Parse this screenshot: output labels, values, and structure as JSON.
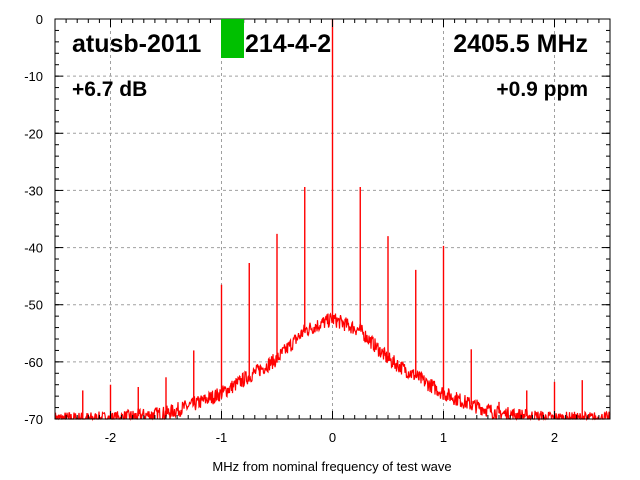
{
  "chart_data": {
    "type": "line",
    "title_left": "atusb-2011",
    "title_right_part": "214-4-2",
    "frequency_label": "2405.5 MHz",
    "level_label": "+6.7 dB",
    "ppm_label": "+0.9 ppm",
    "xlabel": "MHz from nominal frequency of test wave",
    "ylabel": "",
    "xlim": [
      -2.5,
      2.5
    ],
    "ylim": [
      -70,
      0
    ],
    "x_ticks": [
      "-2",
      "-1",
      "0",
      "1",
      "2"
    ],
    "x_tick_values": [
      -2,
      -1,
      0,
      1,
      2
    ],
    "y_ticks": [
      "0",
      "-10",
      "-20",
      "-30",
      "-40",
      "-50",
      "-60",
      "-70"
    ],
    "y_tick_values": [
      0,
      -10,
      -20,
      -30,
      -40,
      -50,
      -60,
      -70
    ],
    "grid": true,
    "series_color": "#ff0000",
    "redaction_color": "#00c000",
    "noise_floor": {
      "x": [
        -2.5,
        -2.25,
        -2,
        -1.75,
        -1.5,
        -1.25,
        -1,
        -0.75,
        -0.5,
        -0.25,
        0,
        0.25,
        0.5,
        0.75,
        1,
        1.25,
        1.5,
        1.75,
        2,
        2.25,
        2.5
      ],
      "y": [
        -70,
        -70,
        -70,
        -69.5,
        -69,
        -67.5,
        -65.5,
        -62.5,
        -59.5,
        -54.5,
        -52.5,
        -54.5,
        -59.5,
        -62.5,
        -65.5,
        -67.5,
        -69,
        -69.5,
        -70,
        -70,
        -70
      ]
    },
    "spurs": {
      "x": [
        -2.25,
        -2,
        -1.75,
        -1.5,
        -1.25,
        -1,
        -0.75,
        -0.5,
        -0.25,
        0,
        0.25,
        0.5,
        0.75,
        1,
        1.25,
        1.5,
        1.75,
        2,
        2.25
      ],
      "y": [
        -65,
        -64,
        -64.4,
        -62.7,
        -58,
        -46.5,
        -42.7,
        -37.6,
        -29.4,
        0,
        -29.4,
        -38,
        -43.9,
        -39.7,
        -57.8,
        -67,
        -65,
        -63.5,
        -63.2
      ]
    }
  }
}
